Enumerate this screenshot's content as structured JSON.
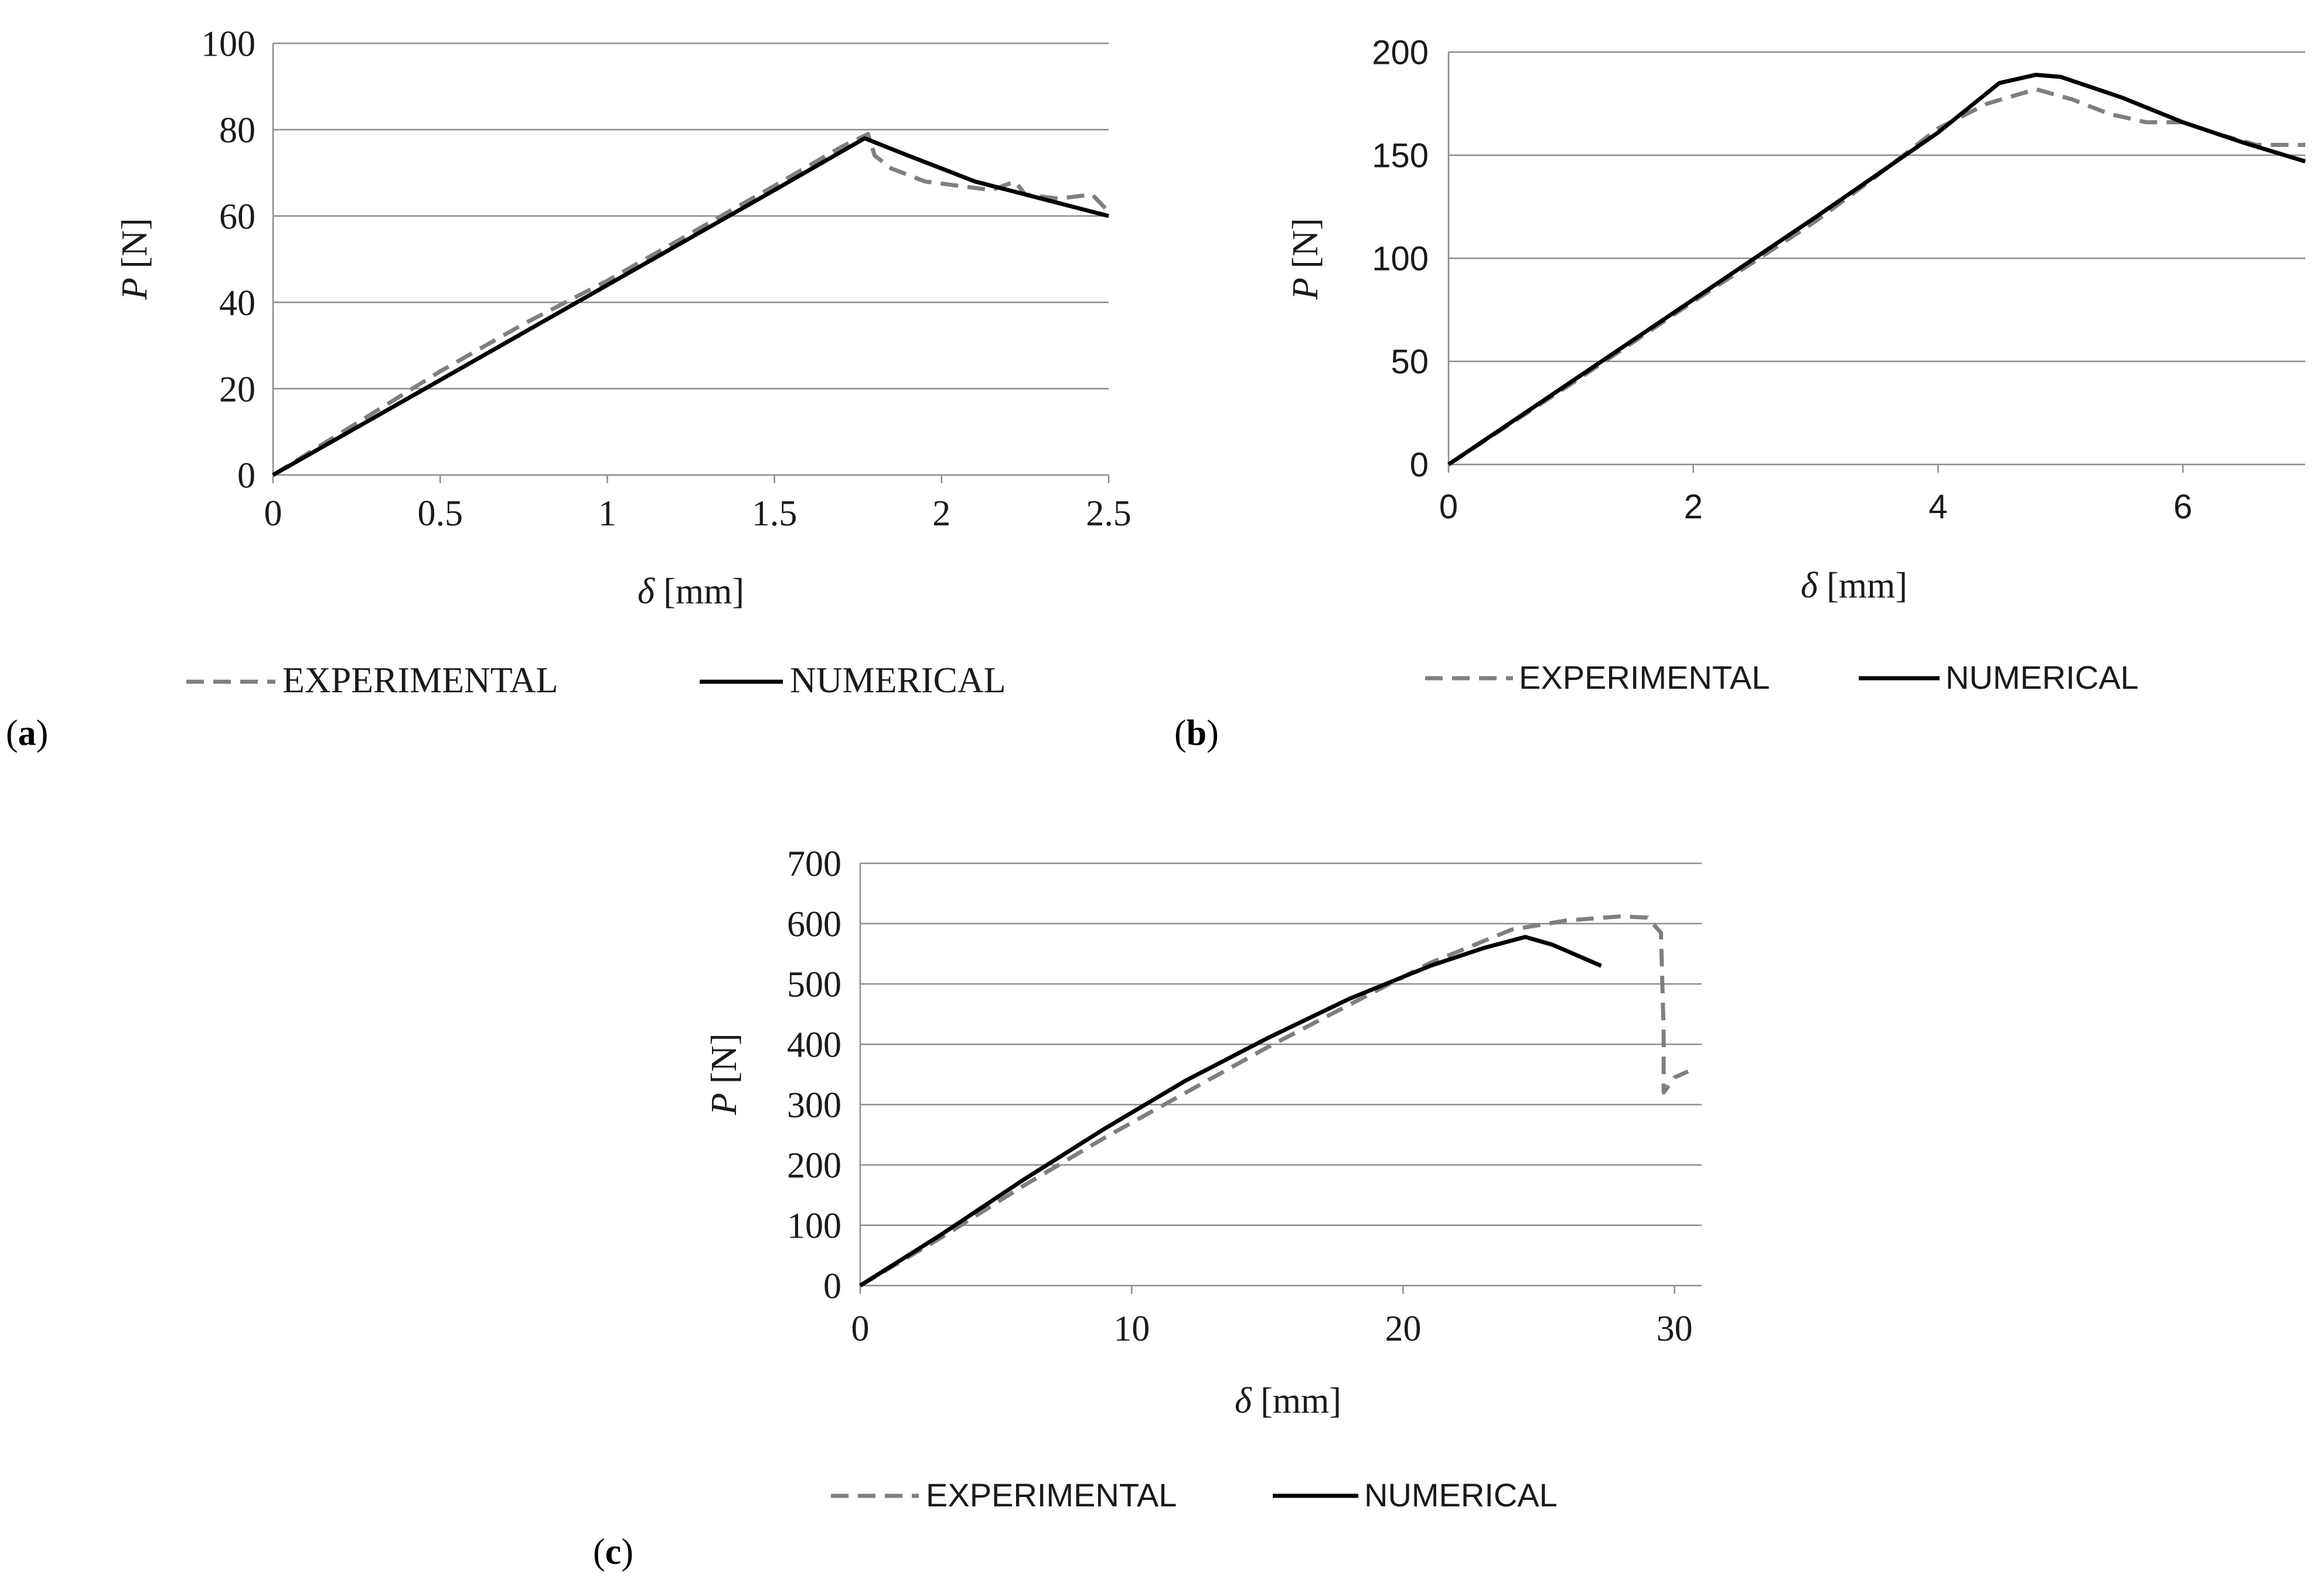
{
  "figure": {
    "colors": {
      "experimental": "#7f7f7f",
      "numerical": "#000000",
      "grid": "#8c8c8c",
      "text": "#1a1a1a"
    }
  },
  "chart_data": [
    {
      "panel_label": "a",
      "type": "line",
      "xlabel_symbol": "δ",
      "xlabel_unit": " [mm]",
      "ylabel_symbol": "P",
      "ylabel_unit": " [N]",
      "xlim": [
        0,
        2.5
      ],
      "ylim": [
        0,
        100
      ],
      "xticks": [
        0,
        0.5,
        1,
        1.5,
        2,
        2.5
      ],
      "xtick_labels": [
        "0",
        "0.5",
        "1",
        "1.5",
        "2",
        "2.5"
      ],
      "yticks": [
        0,
        20,
        40,
        60,
        80,
        100
      ],
      "ytick_labels": [
        "0",
        "20",
        "40",
        "60",
        "80",
        "100"
      ],
      "legend_font": "serif",
      "legend": [
        "EXPERIMENTAL",
        "NUMERICAL"
      ],
      "series": [
        {
          "name": "EXPERIMENTAL",
          "style": "dashed",
          "x": [
            0,
            0.25,
            0.5,
            0.75,
            1.0,
            1.25,
            1.5,
            1.7,
            1.78,
            1.8,
            1.85,
            1.95,
            2.05,
            2.15,
            2.22,
            2.25,
            2.35,
            2.45,
            2.5
          ],
          "y": [
            0,
            12,
            24,
            35,
            45,
            56,
            67,
            76,
            79,
            74,
            71,
            68,
            67,
            66,
            68,
            65,
            64,
            65,
            61
          ]
        },
        {
          "name": "NUMERICAL",
          "style": "solid",
          "x": [
            0,
            0.5,
            1.0,
            1.5,
            1.77,
            1.9,
            2.0,
            2.1,
            2.2,
            2.3,
            2.4,
            2.5
          ],
          "y": [
            0,
            22,
            44,
            66,
            78,
            74,
            71,
            68,
            66,
            64,
            62,
            60
          ]
        }
      ]
    },
    {
      "panel_label": "b",
      "type": "line",
      "xlabel_symbol": "δ",
      "xlabel_unit": " [mm]",
      "ylabel_symbol": "P",
      "ylabel_unit": " [N]",
      "xlim": [
        0,
        7
      ],
      "ylim": [
        0,
        200
      ],
      "xticks": [
        0,
        2,
        4,
        6
      ],
      "xtick_labels": [
        "0",
        "2",
        "4",
        "6"
      ],
      "yticks": [
        0,
        50,
        100,
        150,
        200
      ],
      "ytick_labels": [
        "0",
        "50",
        "100",
        "150",
        "200"
      ],
      "legend_font": "sans",
      "legend": [
        "EXPERIMENTAL",
        "NUMERICAL"
      ],
      "series": [
        {
          "name": "EXPERIMENTAL",
          "style": "dashed",
          "x": [
            0,
            1,
            2,
            3,
            3.5,
            4,
            4.4,
            4.8,
            5.1,
            5.4,
            5.7,
            6.0,
            6.3,
            6.6,
            7.0
          ],
          "y": [
            0,
            39,
            79,
            118,
            140,
            163,
            175,
            182,
            177,
            170,
            166,
            166,
            160,
            155,
            155
          ]
        },
        {
          "name": "NUMERICAL",
          "style": "solid",
          "x": [
            0,
            1,
            2,
            3,
            4,
            4.5,
            4.8,
            5.0,
            5.5,
            6.0,
            6.5,
            7.0
          ],
          "y": [
            0,
            40,
            80,
            120,
            161,
            185,
            189,
            188,
            178,
            166,
            156,
            147
          ]
        }
      ]
    },
    {
      "panel_label": "c",
      "type": "line",
      "xlabel_symbol": "δ",
      "xlabel_unit": " [mm]",
      "ylabel_symbol": "P",
      "ylabel_unit": " [N]",
      "xlim": [
        0,
        31
      ],
      "ylim": [
        0,
        700
      ],
      "xticks": [
        0,
        10,
        20,
        30
      ],
      "xtick_labels": [
        "0",
        "10",
        "20",
        "30"
      ],
      "yticks": [
        0,
        100,
        200,
        300,
        400,
        500,
        600,
        700
      ],
      "ytick_labels": [
        "0",
        "100",
        "200",
        "300",
        "400",
        "500",
        "600",
        "700"
      ],
      "legend_font": "sans",
      "legend": [
        "EXPERIMENTAL",
        "NUMERICAL"
      ],
      "series": [
        {
          "name": "EXPERIMENTAL",
          "style": "dashed",
          "x": [
            0,
            3,
            6,
            9,
            12,
            15,
            18,
            21,
            24,
            26,
            28,
            29,
            29.5,
            29.6,
            29.6,
            30.0,
            30.5
          ],
          "y": [
            0,
            80,
            165,
            245,
            320,
            395,
            465,
            535,
            590,
            605,
            612,
            610,
            585,
            420,
            320,
            345,
            355
          ]
        },
        {
          "name": "NUMERICAL",
          "style": "solid",
          "x": [
            0,
            3,
            6,
            9,
            12,
            15,
            18,
            21,
            23,
            24.5,
            25.5,
            27.3
          ],
          "y": [
            0,
            85,
            175,
            260,
            340,
            410,
            475,
            530,
            560,
            578,
            565,
            530
          ]
        }
      ]
    }
  ]
}
